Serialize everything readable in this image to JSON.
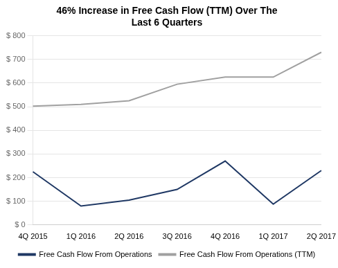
{
  "chart_data": {
    "type": "line",
    "title": "46% Increase in Free Cash Flow (TTM) Over The\nLast 6 Quarters",
    "categories": [
      "4Q 2015",
      "1Q 2016",
      "2Q 2016",
      "3Q 2016",
      "4Q 2016",
      "1Q 2017",
      "2Q 2017"
    ],
    "series": [
      {
        "name": "Free Cash Flow From Operations",
        "color": "#1f3864",
        "values": [
          225,
          80,
          105,
          150,
          270,
          88,
          230
        ]
      },
      {
        "name": "Free Cash Flow From Operations (TTM)",
        "color": "#a0a0a0",
        "values": [
          502,
          510,
          525,
          595,
          625,
          625,
          730
        ]
      }
    ],
    "ylim": [
      0,
      800
    ],
    "yticks": [
      {
        "value": 0,
        "label": "$ 0"
      },
      {
        "value": 100,
        "label": "$ 100"
      },
      {
        "value": 200,
        "label": "$ 200"
      },
      {
        "value": 300,
        "label": "$ 300"
      },
      {
        "value": 400,
        "label": "$ 400"
      },
      {
        "value": 500,
        "label": "$ 500"
      },
      {
        "value": 600,
        "label": "$ 600"
      },
      {
        "value": 700,
        "label": "$ 700"
      },
      {
        "value": 800,
        "label": "$ 800"
      }
    ],
    "grid": "y",
    "legend": "bottom"
  }
}
